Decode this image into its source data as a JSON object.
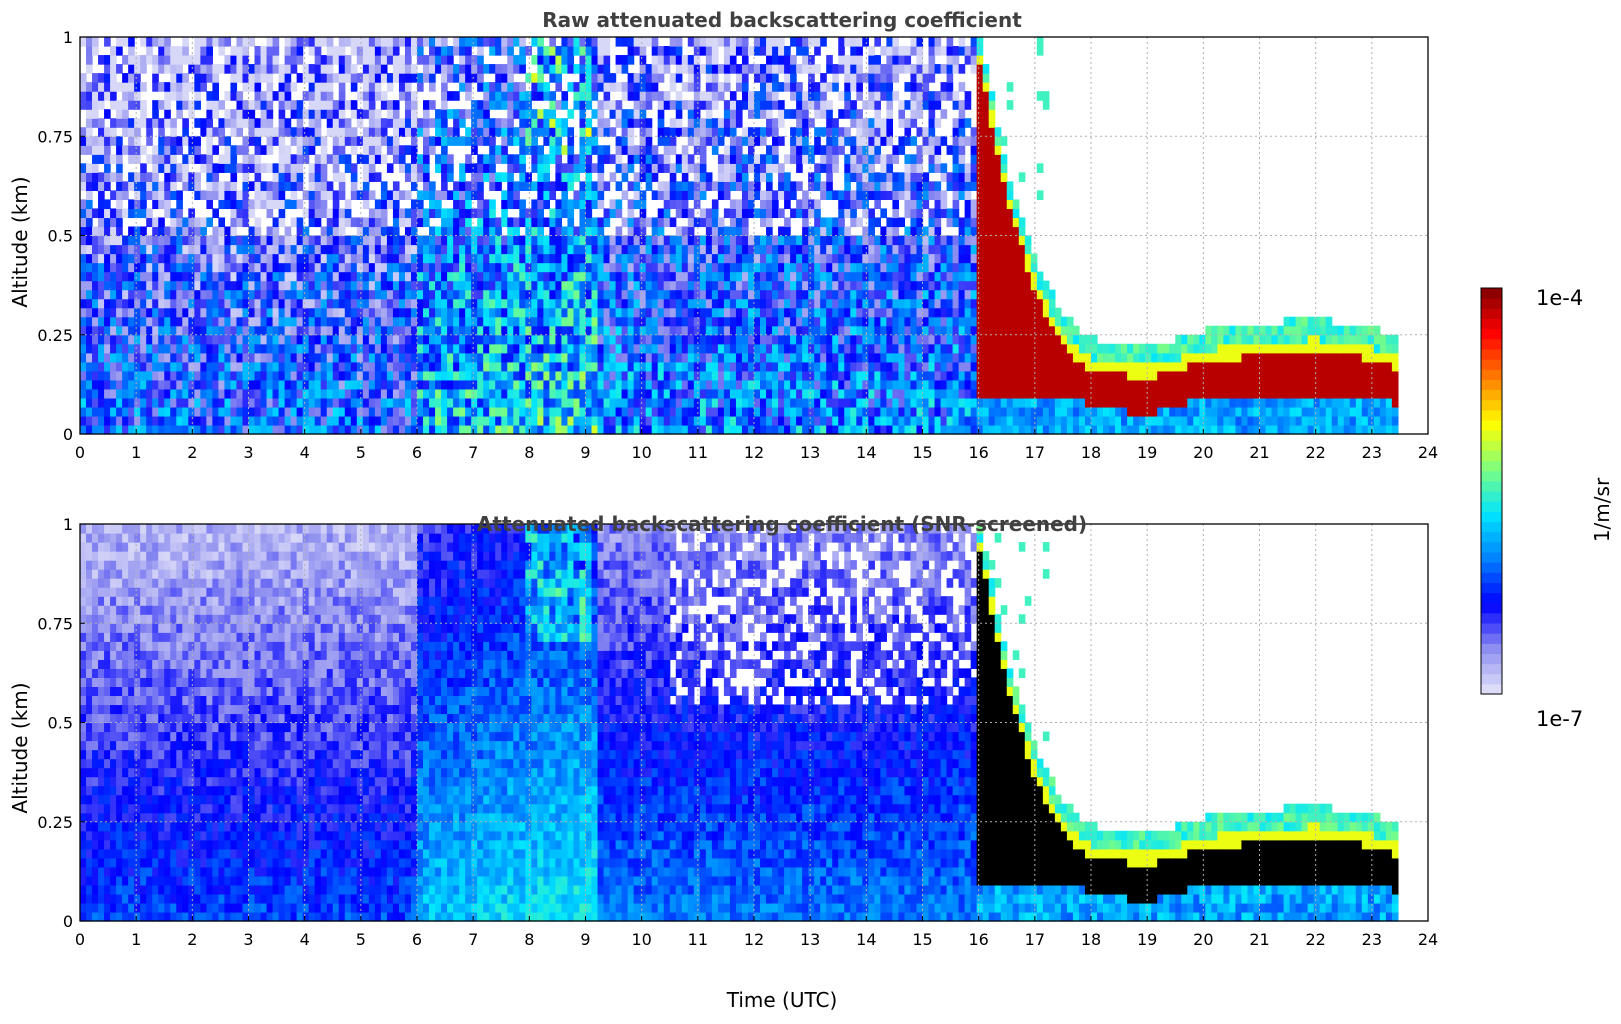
{
  "chart_data": [
    {
      "type": "heatmap",
      "title": "Raw attenuated backscattering coefficient",
      "xlabel": "",
      "ylabel": "Altitude (km)",
      "xlim": [
        0,
        24
      ],
      "ylim": [
        0,
        1
      ],
      "xticks": [
        "0",
        "1",
        "2",
        "3",
        "4",
        "5",
        "6",
        "7",
        "8",
        "9",
        "10",
        "11",
        "12",
        "13",
        "14",
        "15",
        "16",
        "17",
        "18",
        "19",
        "20",
        "21",
        "22",
        "23",
        "24"
      ],
      "yticks": [
        "0",
        "0.25",
        "0.5",
        "0.75",
        "1"
      ],
      "grid": true,
      "variant": "raw",
      "data_end_hour": 23.5,
      "cloud_base_km": [
        [
          16.0,
          1.0
        ],
        [
          16.5,
          0.65
        ],
        [
          17.0,
          0.42
        ],
        [
          17.5,
          0.28
        ],
        [
          18.0,
          0.22
        ],
        [
          19.0,
          0.2
        ],
        [
          20.0,
          0.24
        ],
        [
          21.0,
          0.26
        ],
        [
          22.0,
          0.27
        ],
        [
          23.0,
          0.25
        ],
        [
          23.5,
          0.22
        ]
      ]
    },
    {
      "type": "heatmap",
      "title": "Attenuated backscattering coefficient (SNR-screened)",
      "xlabel": "Time (UTC)",
      "ylabel": "Altitude (km)",
      "xlim": [
        0,
        24
      ],
      "ylim": [
        0,
        1
      ],
      "xticks": [
        "0",
        "1",
        "2",
        "3",
        "4",
        "5",
        "6",
        "7",
        "8",
        "9",
        "10",
        "11",
        "12",
        "13",
        "14",
        "15",
        "16",
        "17",
        "18",
        "19",
        "20",
        "21",
        "22",
        "23",
        "24"
      ],
      "yticks": [
        "0",
        "0.25",
        "0.5",
        "0.75",
        "1"
      ],
      "grid": true,
      "variant": "screened",
      "data_end_hour": 23.5,
      "cloud_base_km": [
        [
          16.0,
          1.0
        ],
        [
          16.5,
          0.65
        ],
        [
          17.0,
          0.42
        ],
        [
          17.5,
          0.28
        ],
        [
          18.0,
          0.22
        ],
        [
          19.0,
          0.2
        ],
        [
          20.0,
          0.24
        ],
        [
          21.0,
          0.26
        ],
        [
          22.0,
          0.27
        ],
        [
          23.0,
          0.25
        ],
        [
          23.5,
          0.22
        ]
      ]
    }
  ],
  "colorbar": {
    "label": "1/m/sr",
    "max_label": "1e-4",
    "min_label": "1e-7",
    "scale": "log",
    "colormap": "jet-like (white/light-blue to dark red)",
    "colors": [
      "#e6e6fa",
      "#9090f0",
      "#0000ff",
      "#0080ff",
      "#00e5ff",
      "#7fff7f",
      "#ffff00",
      "#ff8000",
      "#ff0000",
      "#800000"
    ]
  }
}
